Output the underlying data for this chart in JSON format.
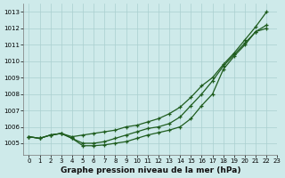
{
  "title": "Graphe pression niveau de la mer (hPa)",
  "bg_color": "#ceeaea",
  "grid_color": "#aacfcf",
  "line_color": "#1e5c1e",
  "xlim": [
    -0.5,
    23
  ],
  "ylim": [
    1004.3,
    1013.5
  ],
  "yticks": [
    1005,
    1006,
    1007,
    1008,
    1009,
    1010,
    1011,
    1012,
    1013
  ],
  "xticks": [
    0,
    1,
    2,
    3,
    4,
    5,
    6,
    7,
    8,
    9,
    10,
    11,
    12,
    13,
    14,
    15,
    16,
    17,
    18,
    19,
    20,
    21,
    22,
    23
  ],
  "series1_x": [
    0,
    1,
    2,
    3,
    4,
    5,
    6,
    7,
    8,
    9,
    10,
    11,
    12,
    13,
    14,
    15,
    16,
    17,
    18,
    19,
    20,
    21,
    22
  ],
  "series1_y": [
    1005.4,
    1005.3,
    1005.5,
    1005.6,
    1005.4,
    1005.5,
    1005.6,
    1005.7,
    1005.8,
    1006.0,
    1006.1,
    1006.3,
    1006.5,
    1006.8,
    1007.2,
    1007.8,
    1008.5,
    1009.0,
    1009.8,
    1010.5,
    1011.3,
    1012.1,
    1013.0
  ],
  "series2_x": [
    0,
    1,
    2,
    3,
    4,
    5,
    6,
    7,
    8,
    9,
    10,
    11,
    12,
    13,
    14,
    15,
    16,
    17,
    18,
    19,
    20,
    21,
    22
  ],
  "series2_y": [
    1005.4,
    1005.3,
    1005.5,
    1005.6,
    1005.3,
    1005.0,
    1005.0,
    1005.1,
    1005.3,
    1005.5,
    1005.7,
    1005.9,
    1006.0,
    1006.2,
    1006.6,
    1007.3,
    1008.0,
    1008.8,
    1009.7,
    1010.4,
    1011.1,
    1011.8,
    1012.2
  ],
  "series3_x": [
    0,
    1,
    2,
    3,
    4,
    5,
    6,
    7,
    8,
    9,
    10,
    11,
    12,
    13,
    14,
    15,
    16,
    17,
    18,
    19,
    20,
    21,
    22
  ],
  "series3_y": [
    1005.4,
    1005.3,
    1005.5,
    1005.6,
    1005.3,
    1004.85,
    1004.85,
    1004.9,
    1005.0,
    1005.1,
    1005.3,
    1005.5,
    1005.65,
    1005.8,
    1006.0,
    1006.5,
    1007.3,
    1008.0,
    1009.5,
    1010.3,
    1011.0,
    1011.8,
    1012.0
  ],
  "marker_size": 3.5,
  "line_width": 0.9,
  "title_fontsize": 6.5,
  "tick_fontsize": 5
}
